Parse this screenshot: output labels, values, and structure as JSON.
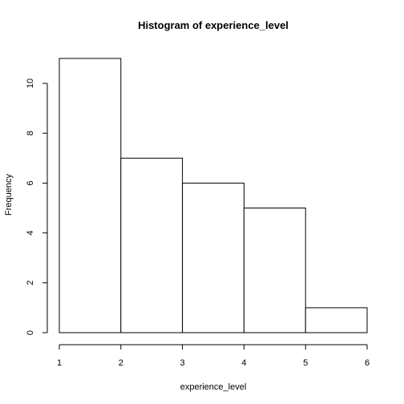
{
  "chart_data": {
    "type": "bar",
    "title": "Histogram of experience_level",
    "xlabel": "experience_level",
    "ylabel": "Frequency",
    "bins": [
      [
        1,
        2
      ],
      [
        2,
        3
      ],
      [
        3,
        4
      ],
      [
        4,
        5
      ],
      [
        5,
        6
      ]
    ],
    "values": [
      11,
      7,
      6,
      5,
      1
    ],
    "xlim": [
      1,
      6
    ],
    "ylim": [
      0,
      11
    ],
    "x_ticks": [
      1,
      2,
      3,
      4,
      5,
      6
    ],
    "y_ticks": [
      0,
      2,
      4,
      6,
      8,
      10
    ],
    "grid": false,
    "colors": {
      "bar_fill": "#ffffff",
      "bar_stroke": "#000000"
    }
  }
}
